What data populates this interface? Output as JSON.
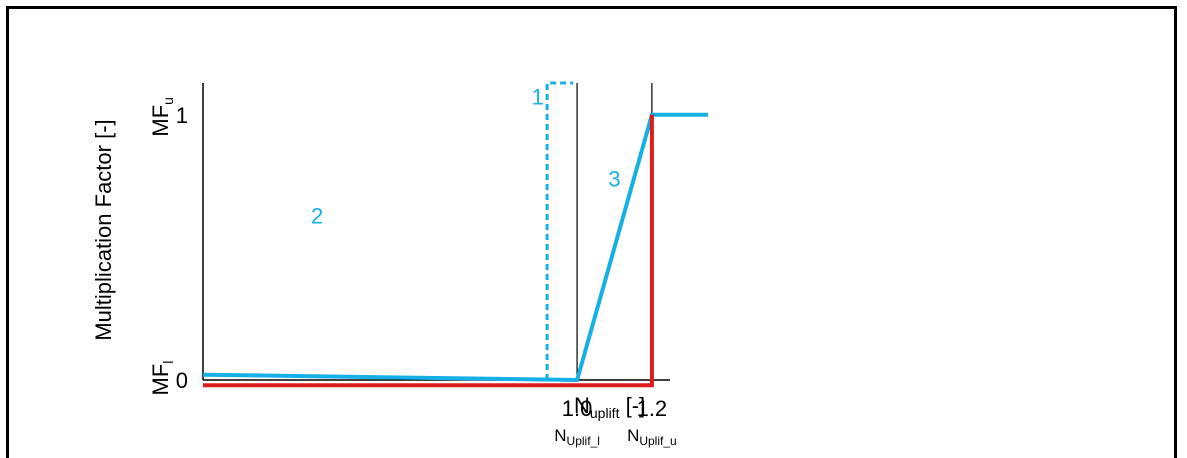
{
  "chart_data": {
    "type": "line",
    "title": "",
    "ylabel": "Multiplication Factor [-]",
    "xlabel": {
      "main": "N",
      "sub": "uplift",
      "suffix": " [-]"
    },
    "xlim": [
      0.0,
      1.35
    ],
    "ylim": [
      0,
      1.12
    ],
    "y_ticks": [
      {
        "value": 0,
        "label": "0",
        "side": {
          "main": "MF",
          "sub": "l"
        }
      },
      {
        "value": 1,
        "label": "1",
        "side": {
          "main": "MF",
          "sub": "u"
        }
      }
    ],
    "x_ticks": [
      {
        "value": 1.0,
        "label": "1.0",
        "sub": {
          "main": "N",
          "sub": "Uplif_l"
        }
      },
      {
        "value": 1.2,
        "label": "1.2",
        "sub": {
          "main": "N",
          "sub": "Uplif_u"
        }
      }
    ],
    "x_breakpoints": [
      1.0,
      1.2
    ],
    "series": [
      {
        "style": "solid",
        "color": "#16b0e6",
        "x": [
          0.0,
          1.0,
          1.2,
          1.35
        ],
        "y": [
          0.02,
          0.0,
          1.0,
          1.0
        ]
      },
      {
        "style": "dashed",
        "color": "#16b0e6",
        "x": [
          0.92,
          0.92,
          0.99
        ],
        "y": [
          0.0,
          1.12,
          1.12
        ]
      },
      {
        "style": "solid",
        "color": "#dd1c1c",
        "x": [
          0.0,
          1.2,
          1.2
        ],
        "y": [
          -0.02,
          -0.02,
          1.0
        ]
      }
    ],
    "annotations": [
      {
        "label": "1",
        "x": 0.895,
        "y": 1.07,
        "color": "#16b0e6"
      },
      {
        "label": "2",
        "x": 0.305,
        "y": 0.62,
        "color": "#16b0e6"
      },
      {
        "label": "3",
        "x": 1.1,
        "y": 0.76,
        "color": "#16b0e6"
      }
    ],
    "grid": false,
    "legend": "none"
  }
}
